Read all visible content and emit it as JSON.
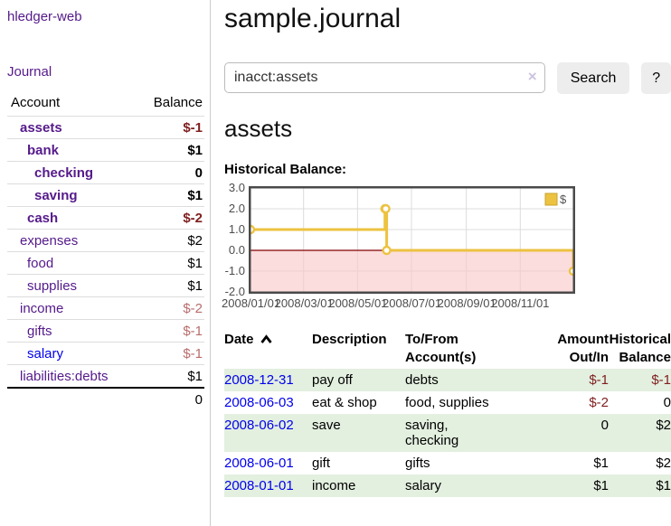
{
  "colors": {
    "link_purple": "#551a8b",
    "link_blue": "#0000ee",
    "negative_strong": "#7f1f1f",
    "negative_soft": "#b86d6d",
    "row_stripe_green": "#e3efdf",
    "chart_series_gold": "#edc240",
    "chart_negative_region": "#f9c8c8",
    "chart_zero_line": "#800000"
  },
  "sidebar": {
    "app_title": "hledger-web",
    "journal_link": "Journal",
    "accounts": {
      "header": {
        "account": "Account",
        "balance": "Balance"
      },
      "rows": [
        {
          "name": "assets",
          "balance": "$-1"
        },
        {
          "name": "bank",
          "balance": "$1"
        },
        {
          "name": "checking",
          "balance": "0"
        },
        {
          "name": "saving",
          "balance": "$1"
        },
        {
          "name": "cash",
          "balance": "$-2"
        },
        {
          "name": "expenses",
          "balance": "$2"
        },
        {
          "name": "food",
          "balance": "$1"
        },
        {
          "name": "supplies",
          "balance": "$1"
        },
        {
          "name": "income",
          "balance": "$-2"
        },
        {
          "name": "gifts",
          "balance": "$-1"
        },
        {
          "name": "salary",
          "balance": "$-1"
        },
        {
          "name": "liabilities:debts",
          "balance": "$1"
        }
      ],
      "total": "0"
    }
  },
  "main": {
    "title": "sample.journal",
    "search": {
      "value": "inacct:assets",
      "clear_icon": "×",
      "search_button": "Search",
      "help_button": "?"
    },
    "account_heading": "assets",
    "chart_heading": "Historical Balance:"
  },
  "chart_data": {
    "type": "line",
    "step": true,
    "title": "Historical Balance:",
    "series": [
      {
        "name": "$",
        "color": "#edc240",
        "points": [
          [
            "2008-01-01",
            1
          ],
          [
            "2008-06-01",
            2
          ],
          [
            "2008-06-02",
            2
          ],
          [
            "2008-06-03",
            0
          ],
          [
            "2008-12-31",
            -1
          ]
        ]
      }
    ],
    "x_ticks": [
      "2008/01/01",
      "2008/03/01",
      "2008/05/01",
      "2008/07/01",
      "2008/09/01",
      "2008/11/01"
    ],
    "y_ticks": [
      "3.0",
      "2.0",
      "1.0",
      "0.0",
      "-1.0",
      "-2.0"
    ],
    "xlim": [
      "2008-01-01",
      "2008-12-31"
    ],
    "ylim": [
      -2,
      3
    ],
    "xlabel": "",
    "ylabel": "",
    "grid": true,
    "legend_position": "top-right",
    "negative_region_color": "#f9c8c8",
    "zero_line_color": "#800000"
  },
  "register": {
    "header": {
      "date": "Date",
      "description": "Description",
      "account_line1": "To/From",
      "account_line2": "Account(s)",
      "amount_line1": "Amount",
      "amount_line2": "Out/In",
      "balance_line1": "Historical",
      "balance_line2": "Balance"
    },
    "rows": [
      {
        "date": "2008-12-31",
        "description": "pay off",
        "accounts": [
          "debts"
        ],
        "amount": "$-1",
        "balance": "$-1"
      },
      {
        "date": "2008-06-03",
        "description": "eat & shop",
        "accounts": [
          "food, supplies"
        ],
        "amount": "$-2",
        "balance": "0"
      },
      {
        "date": "2008-06-02",
        "description": "save",
        "accounts": [
          "saving,",
          "checking"
        ],
        "amount": "0",
        "balance": "$2"
      },
      {
        "date": "2008-06-01",
        "description": "gift",
        "accounts": [
          "gifts"
        ],
        "amount": "$1",
        "balance": "$2"
      },
      {
        "date": "2008-01-01",
        "description": "income",
        "accounts": [
          "salary"
        ],
        "amount": "$1",
        "balance": "$1"
      }
    ]
  }
}
